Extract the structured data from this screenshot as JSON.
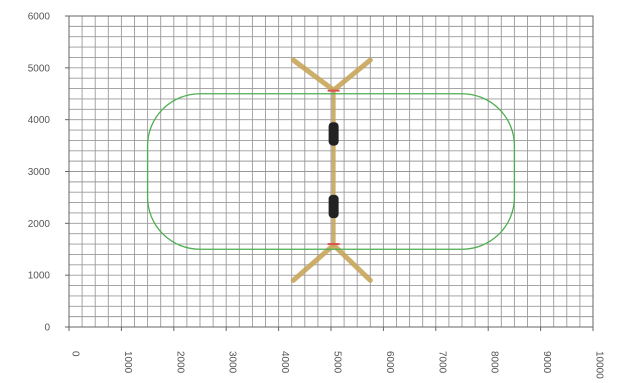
{
  "chart_data": {
    "type": "line",
    "title": "",
    "xlabel": "",
    "ylabel": "",
    "xlim": [
      0,
      10000
    ],
    "ylim": [
      0,
      6000
    ],
    "grid": true,
    "x_ticks": [
      {
        "value": 0,
        "label": "0"
      },
      {
        "value": 1000,
        "label": "1000"
      },
      {
        "value": 2000,
        "label": "2000"
      },
      {
        "value": 3000,
        "label": "3000"
      },
      {
        "value": 4000,
        "label": "4000"
      },
      {
        "value": 5000,
        "label": "5000"
      },
      {
        "value": 6000,
        "label": "6000"
      },
      {
        "value": 7000,
        "label": "7000"
      },
      {
        "value": 8000,
        "label": "8000"
      },
      {
        "value": 9000,
        "label": "9000"
      },
      {
        "value": 10000,
        "label": "10000"
      }
    ],
    "y_ticks": [
      {
        "value": 0,
        "label": "0"
      },
      {
        "value": 1000,
        "label": "1000"
      },
      {
        "value": 2000,
        "label": "2000"
      },
      {
        "value": 3000,
        "label": "3000"
      },
      {
        "value": 4000,
        "label": "4000"
      },
      {
        "value": 5000,
        "label": "5000"
      },
      {
        "value": 6000,
        "label": "6000"
      }
    ],
    "series": [
      {
        "color": "#4caf50",
        "shape": "rounded-rectangle",
        "x_range": [
          1500,
          8500
        ],
        "y_range": [
          1500,
          4500
        ],
        "corner_radius": 1000
      }
    ],
    "overlay_image": {
      "icon": "vehicle-top-view-icon",
      "description_values": {
        "center_x": 5050,
        "y_bottom": 900,
        "y_top": 5200
      }
    },
    "colors": {
      "grid": "#9a9a9a",
      "frame": "#666666",
      "path": "#4caf50",
      "arm": "#c8a55a",
      "wheel": "#222222",
      "marker": "#d9534f"
    }
  }
}
